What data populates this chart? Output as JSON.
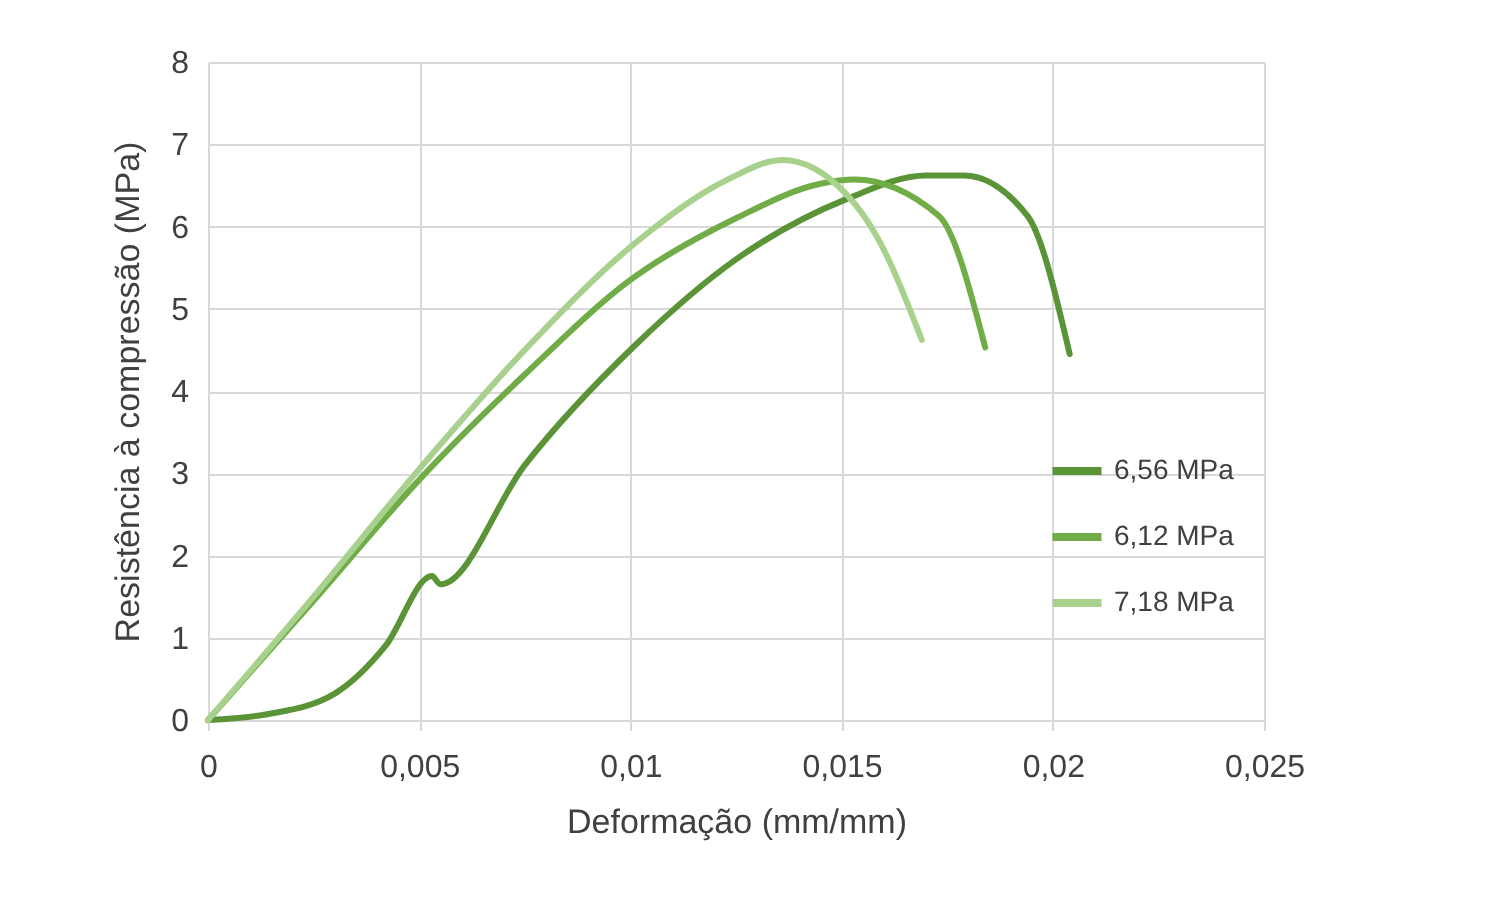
{
  "chart_data": {
    "type": "line",
    "xlabel": "Deformação (mm/mm)",
    "ylabel": "Resistência à compressão (MPa)",
    "xlim": [
      0,
      0.025
    ],
    "xticks": [
      {
        "value": 0,
        "label": "0"
      },
      {
        "value": 0.005,
        "label": "0,005"
      },
      {
        "value": 0.01,
        "label": "0,01"
      },
      {
        "value": 0.015,
        "label": "0,015"
      },
      {
        "value": 0.02,
        "label": "0,02"
      },
      {
        "value": 0.025,
        "label": "0,025"
      }
    ],
    "ylim": [
      0,
      8
    ],
    "yticks": [
      0,
      1,
      2,
      3,
      4,
      5,
      6,
      7,
      8
    ],
    "grid": true,
    "legend": "right",
    "marker": "none",
    "line_style": "solid",
    "series": [
      {
        "name": "6,56 MPa",
        "color": "#5a9436",
        "x": [
          0,
          0.0014,
          0.003,
          0.0042,
          0.0053,
          0.0055,
          0.0075,
          0.0101,
          0.0125,
          0.0151,
          0.017,
          0.0179,
          0.0194,
          0.0204
        ],
        "values": [
          0,
          0.07,
          0.32,
          0.9,
          1.75,
          1.65,
          3.1,
          4.55,
          5.6,
          6.33,
          6.62,
          6.62,
          6.13,
          4.45
        ]
      },
      {
        "name": "6,12 MPa",
        "color": "#70ad47",
        "x": [
          0,
          0.0025,
          0.005,
          0.0075,
          0.01,
          0.0125,
          0.0145,
          0.0153,
          0.0173,
          0.0184
        ],
        "values": [
          0,
          1.45,
          2.92,
          4.2,
          5.35,
          6.1,
          6.52,
          6.57,
          6.13,
          4.53
        ]
      },
      {
        "name": "7,18 MPa",
        "color": "#a9d18e",
        "x": [
          0,
          0.0025,
          0.005,
          0.0075,
          0.01,
          0.0123,
          0.0136,
          0.0151,
          0.0158,
          0.0169
        ],
        "values": [
          0,
          1.5,
          3.05,
          4.5,
          5.75,
          6.57,
          6.81,
          6.4,
          5.91,
          4.62
        ]
      }
    ]
  }
}
